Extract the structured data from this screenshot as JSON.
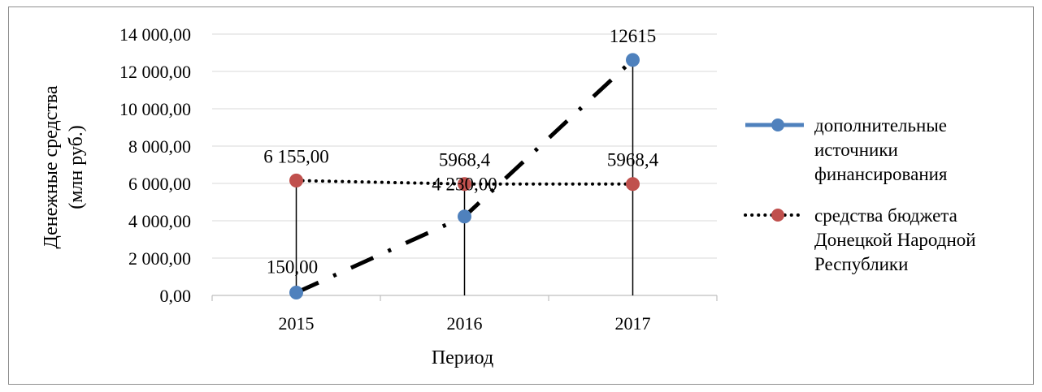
{
  "chart_data": {
    "type": "line",
    "title": "",
    "xlabel": "Период",
    "ylabel_lines": [
      "Денежные средства",
      "(млн руб.)"
    ],
    "categories": [
      "2015",
      "2016",
      "2017"
    ],
    "ylim": [
      0,
      14000
    ],
    "yticks": [
      0,
      2000,
      4000,
      6000,
      8000,
      10000,
      12000,
      14000
    ],
    "ytick_labels": [
      "0,00",
      "2 000,00",
      "4 000,00",
      "6 000,00",
      "8 000,00",
      "10 000,00",
      "12 000,00",
      "14 000,00"
    ],
    "grid": "horizontal",
    "legend_position": "right",
    "drop_lines": true,
    "series": [
      {
        "name_lines": [
          "дополнительные",
          "источники",
          "финансирования"
        ],
        "values": [
          150,
          4230,
          12615
        ],
        "data_labels": [
          "150,00",
          "4 230,00",
          "12615"
        ],
        "line_style": "dash-dot",
        "line_color": "#000000",
        "marker_color": "#4f81bd",
        "legend_line_color": "#4f81bd"
      },
      {
        "name_lines": [
          "средства бюджета",
          "Донецкой Народной",
          "Республики"
        ],
        "values": [
          6155,
          5968.4,
          5968.4
        ],
        "data_labels": [
          "6 155,00",
          "5968,4",
          "5968,4"
        ],
        "line_style": "dotted",
        "line_color": "#000000",
        "marker_color": "#c0504d",
        "legend_line_color": "#000000"
      }
    ]
  }
}
